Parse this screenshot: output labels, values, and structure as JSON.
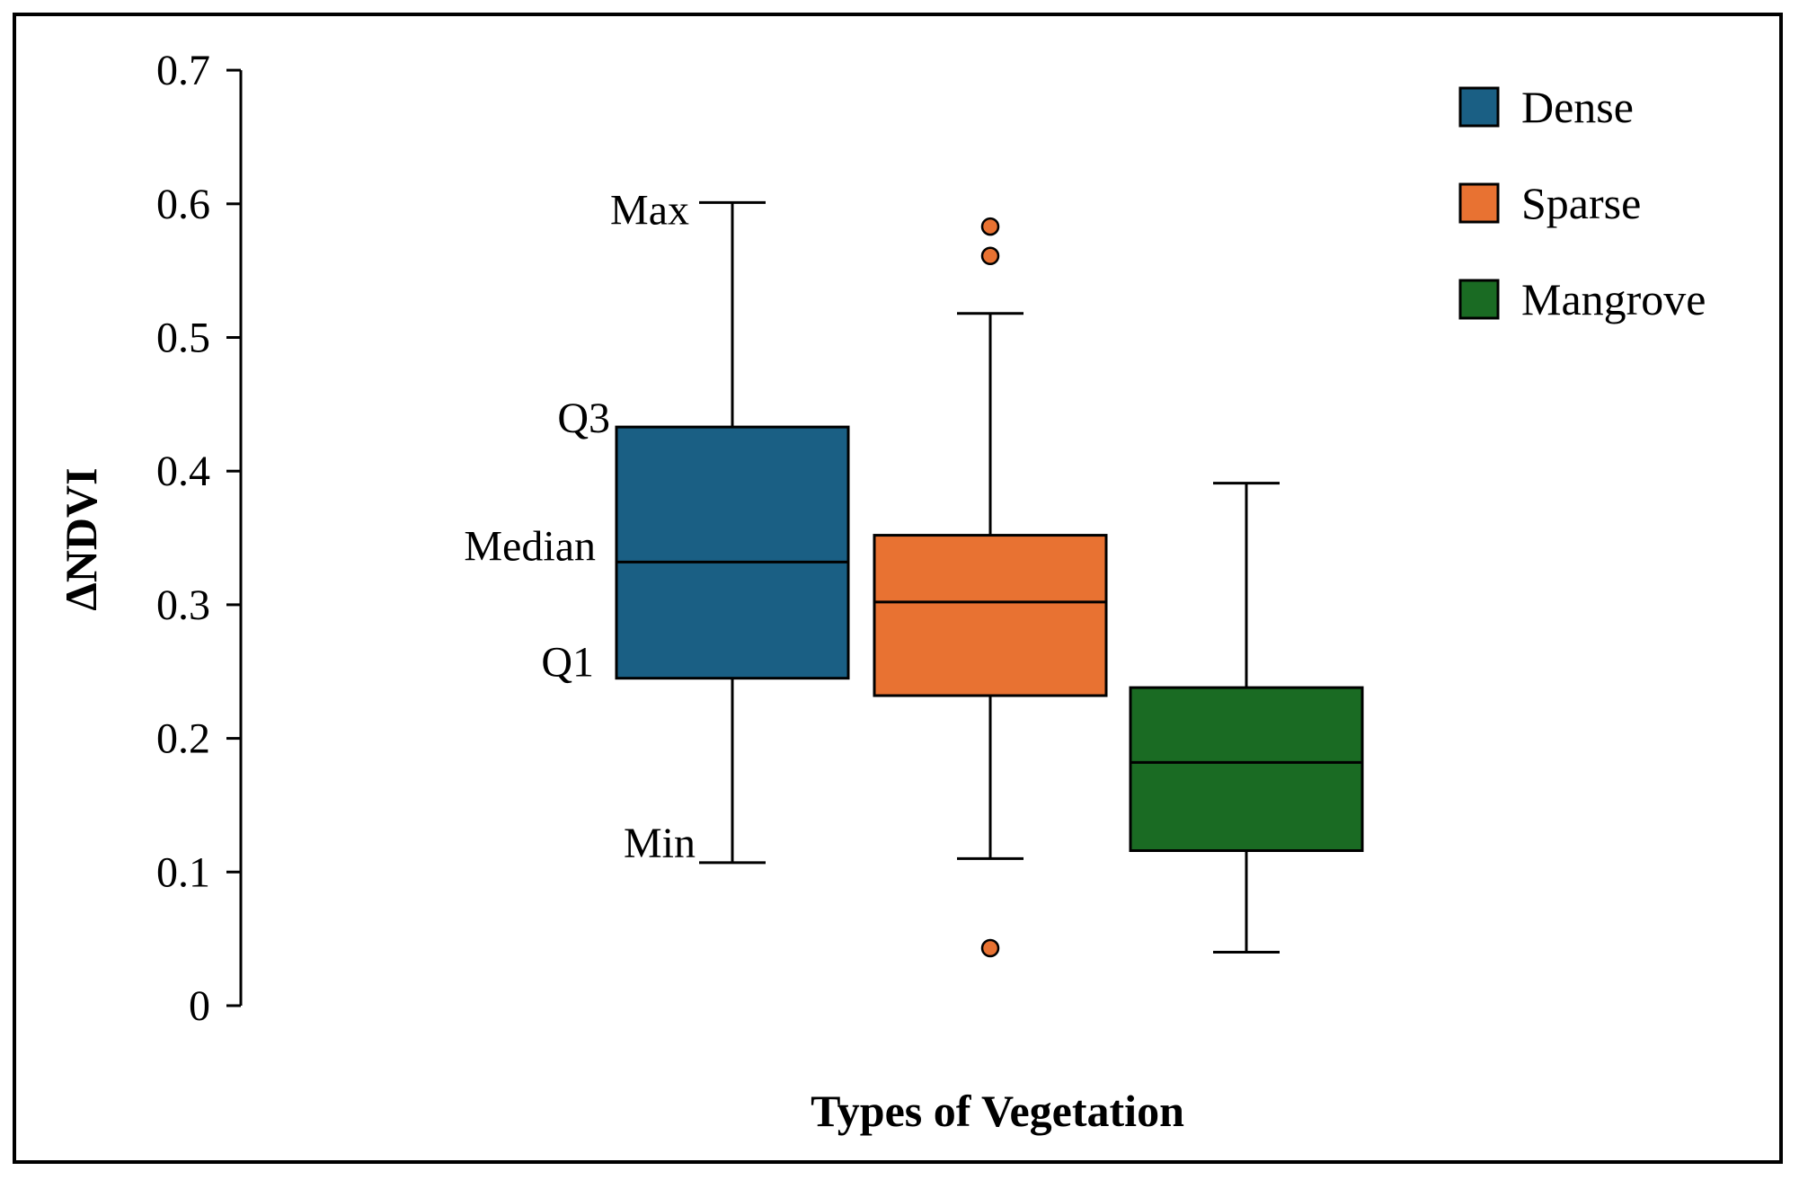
{
  "chart_data": {
    "type": "box",
    "title": "",
    "xlabel": "Types of Vegetation",
    "ylabel": "ΔNDVI",
    "ylim": [
      0,
      0.7
    ],
    "yticks": [
      {
        "value": 0,
        "label": "0"
      },
      {
        "value": 0.1,
        "label": "0.1"
      },
      {
        "value": 0.2,
        "label": "0.2"
      },
      {
        "value": 0.3,
        "label": "0.3"
      },
      {
        "value": 0.4,
        "label": "0.4"
      },
      {
        "value": 0.5,
        "label": "0.5"
      },
      {
        "value": 0.6,
        "label": "0.6"
      },
      {
        "value": 0.7,
        "label": "0.7"
      }
    ],
    "grid": false,
    "legend_position": "top-right",
    "series": [
      {
        "name": "Dense",
        "color": "#1a5f84",
        "min": 0.107,
        "q1": 0.245,
        "median": 0.332,
        "q3": 0.433,
        "max": 0.601,
        "outliers": []
      },
      {
        "name": "Sparse",
        "color": "#e87232",
        "min": 0.11,
        "q1": 0.232,
        "median": 0.302,
        "q3": 0.352,
        "max": 0.518,
        "outliers": [
          0.583,
          0.561,
          0.043
        ]
      },
      {
        "name": "Mangrove",
        "color": "#1a6b23",
        "min": 0.04,
        "q1": 0.116,
        "median": 0.182,
        "q3": 0.238,
        "max": 0.391,
        "outliers": []
      }
    ],
    "annotations": [
      {
        "text": "Max",
        "refers_to": "max"
      },
      {
        "text": "Q3",
        "refers_to": "q3"
      },
      {
        "text": "Median",
        "refers_to": "median"
      },
      {
        "text": "Q1",
        "refers_to": "q1"
      },
      {
        "text": "Min",
        "refers_to": "min"
      }
    ]
  }
}
